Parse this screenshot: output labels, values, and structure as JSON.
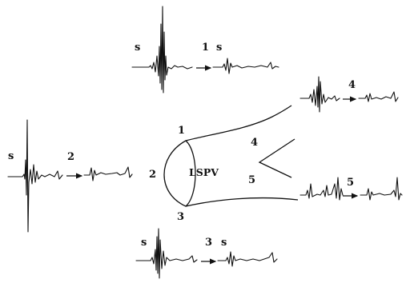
{
  "diagram": {
    "vein_label": "LSPV",
    "ostium_sites": [
      "1",
      "2",
      "3",
      "4",
      "5"
    ],
    "stim_marker": "s",
    "recordings": [
      {
        "site": "1",
        "before_label": "s",
        "after_label": "s"
      },
      {
        "site": "2",
        "before_label": "s"
      },
      {
        "site": "3",
        "before_label": "s",
        "after_label": "s"
      },
      {
        "site": "4"
      },
      {
        "site": "5"
      }
    ]
  }
}
